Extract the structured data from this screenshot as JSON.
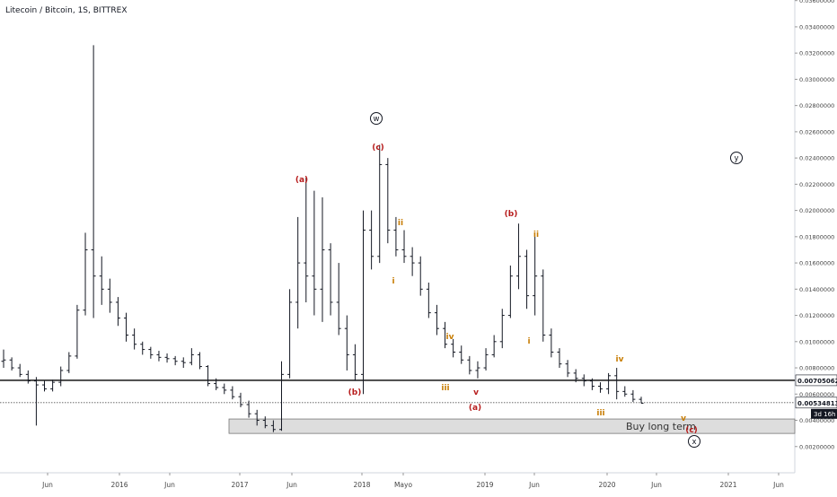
{
  "chart_data": {
    "type": "bar",
    "subtype": "ohlc",
    "title": "Litecoin / Bitcoin, 1S, BITTREX",
    "timeframe": "1S",
    "exchange": "BITTREX",
    "ylim": [
      0.0,
      0.036
    ],
    "y_ticks": [
      "0.00200000",
      "0.00400000",
      "0.00600000",
      "0.00800000",
      "0.01000000",
      "0.01200000",
      "0.01400000",
      "0.01600000",
      "0.01800000",
      "0.02000000",
      "0.02200000",
      "0.02400000",
      "0.02600000",
      "0.02800000",
      "0.03000000",
      "0.03200000",
      "0.03400000",
      "0.03600000"
    ],
    "x_ticks": [
      "Jun",
      "2016",
      "Jun",
      "2017",
      "Jun",
      "2018",
      "Mayo",
      "2019",
      "Jun",
      "2020",
      "Jun",
      "2021",
      "Jun"
    ],
    "grid": false,
    "series": [
      {
        "values": [
          [
            0.0085,
            0.0094,
            0.008,
            0.0086
          ],
          [
            0.0086,
            0.0088,
            0.0078,
            0.008
          ],
          [
            0.008,
            0.0083,
            0.0073,
            0.0075
          ],
          [
            0.0075,
            0.0078,
            0.0068,
            0.007
          ],
          [
            0.007,
            0.0073,
            0.0036,
            0.0067
          ],
          [
            0.0067,
            0.007,
            0.0062,
            0.0064
          ],
          [
            0.0064,
            0.0071,
            0.0062,
            0.0069
          ],
          [
            0.0069,
            0.0081,
            0.0066,
            0.0078
          ],
          [
            0.0078,
            0.0092,
            0.0076,
            0.0089
          ],
          [
            0.0089,
            0.0128,
            0.0087,
            0.0124
          ],
          [
            0.0124,
            0.0183,
            0.012,
            0.017
          ],
          [
            0.017,
            0.0326,
            0.0118,
            0.015
          ],
          [
            0.015,
            0.0165,
            0.0128,
            0.014
          ],
          [
            0.014,
            0.0148,
            0.0122,
            0.013
          ],
          [
            0.013,
            0.0134,
            0.0112,
            0.0118
          ],
          [
            0.0118,
            0.0122,
            0.01,
            0.0105
          ],
          [
            0.0105,
            0.011,
            0.0094,
            0.0098
          ],
          [
            0.0098,
            0.01,
            0.009,
            0.0094
          ],
          [
            0.0094,
            0.0096,
            0.0087,
            0.009
          ],
          [
            0.009,
            0.0093,
            0.0085,
            0.0088
          ],
          [
            0.0088,
            0.0091,
            0.0084,
            0.0087
          ],
          [
            0.0087,
            0.0089,
            0.0082,
            0.0085
          ],
          [
            0.0085,
            0.0088,
            0.008,
            0.0084
          ],
          [
            0.0084,
            0.0095,
            0.0082,
            0.009
          ],
          [
            0.009,
            0.0092,
            0.0079,
            0.0081
          ],
          [
            0.0081,
            0.0082,
            0.0066,
            0.0068
          ],
          [
            0.0068,
            0.0072,
            0.0063,
            0.0065
          ],
          [
            0.0065,
            0.0068,
            0.006,
            0.0063
          ],
          [
            0.0063,
            0.0066,
            0.0056,
            0.0058
          ],
          [
            0.0058,
            0.0061,
            0.005,
            0.0052
          ],
          [
            0.0052,
            0.0055,
            0.0042,
            0.0045
          ],
          [
            0.0045,
            0.0048,
            0.0036,
            0.004
          ],
          [
            0.004,
            0.0043,
            0.0034,
            0.0036
          ],
          [
            0.0036,
            0.004,
            0.0031,
            0.0033
          ],
          [
            0.0033,
            0.0085,
            0.0032,
            0.0075
          ],
          [
            0.0075,
            0.014,
            0.0072,
            0.013
          ],
          [
            0.013,
            0.0195,
            0.011,
            0.016
          ],
          [
            0.016,
            0.0225,
            0.013,
            0.015
          ],
          [
            0.015,
            0.0215,
            0.012,
            0.014
          ],
          [
            0.014,
            0.021,
            0.0115,
            0.017
          ],
          [
            0.017,
            0.0175,
            0.012,
            0.013
          ],
          [
            0.013,
            0.016,
            0.0105,
            0.011
          ],
          [
            0.011,
            0.012,
            0.0078,
            0.009
          ],
          [
            0.009,
            0.0098,
            0.007,
            0.0075
          ],
          [
            0.0075,
            0.02,
            0.006,
            0.0185
          ],
          [
            0.0185,
            0.02,
            0.0155,
            0.0165
          ],
          [
            0.0165,
            0.025,
            0.016,
            0.0235
          ],
          [
            0.0235,
            0.024,
            0.0175,
            0.0185
          ],
          [
            0.0185,
            0.0195,
            0.0165,
            0.017
          ],
          [
            0.017,
            0.0185,
            0.016,
            0.0165
          ],
          [
            0.0165,
            0.0172,
            0.015,
            0.016
          ],
          [
            0.016,
            0.0165,
            0.0135,
            0.014
          ],
          [
            0.014,
            0.0145,
            0.0118,
            0.0122
          ],
          [
            0.0122,
            0.0128,
            0.0105,
            0.011
          ],
          [
            0.011,
            0.0115,
            0.0095,
            0.0098
          ],
          [
            0.0098,
            0.0102,
            0.0088,
            0.0092
          ],
          [
            0.0092,
            0.0097,
            0.0083,
            0.0086
          ],
          [
            0.0086,
            0.0089,
            0.0075,
            0.0078
          ],
          [
            0.0078,
            0.0085,
            0.0072,
            0.008
          ],
          [
            0.008,
            0.0095,
            0.0078,
            0.009
          ],
          [
            0.009,
            0.0105,
            0.0088,
            0.01
          ],
          [
            0.01,
            0.0125,
            0.0095,
            0.012
          ],
          [
            0.012,
            0.0158,
            0.0118,
            0.015
          ],
          [
            0.015,
            0.019,
            0.014,
            0.0165
          ],
          [
            0.0165,
            0.017,
            0.0125,
            0.0135
          ],
          [
            0.0135,
            0.018,
            0.012,
            0.015
          ],
          [
            0.015,
            0.0155,
            0.01,
            0.0105
          ],
          [
            0.0105,
            0.011,
            0.0088,
            0.0092
          ],
          [
            0.0092,
            0.0095,
            0.008,
            0.0083
          ],
          [
            0.0083,
            0.0086,
            0.0073,
            0.0076
          ],
          [
            0.0076,
            0.0079,
            0.0069,
            0.0072
          ],
          [
            0.0072,
            0.0075,
            0.0066,
            0.007
          ],
          [
            0.007,
            0.0072,
            0.0063,
            0.0066
          ],
          [
            0.0066,
            0.0069,
            0.0061,
            0.0064
          ],
          [
            0.0064,
            0.0076,
            0.006,
            0.0074
          ],
          [
            0.0074,
            0.008,
            0.0056,
            0.0062
          ],
          [
            0.0062,
            0.0066,
            0.0058,
            0.006
          ],
          [
            0.006,
            0.0063,
            0.0054,
            0.0056
          ],
          [
            0.0056,
            0.0058,
            0.0053,
            0.0053
          ]
        ]
      }
    ],
    "horizontal_lines": [
      0.00705062,
      0.00534813
    ],
    "price_labels": [
      "0.00705062",
      "0.00534813",
      "3d 16h"
    ],
    "annotations": [
      {
        "text": "(a)",
        "color": "#b71c1c"
      },
      {
        "text": "(b)",
        "color": "#b71c1c"
      },
      {
        "text": "(c)",
        "color": "#b71c1c"
      },
      {
        "text": "w",
        "color": "#131722",
        "circled": true
      },
      {
        "text": "ii",
        "color": "#c77c02"
      },
      {
        "text": "i",
        "color": "#c77c02"
      },
      {
        "text": "iv",
        "color": "#c77c02"
      },
      {
        "text": "iii",
        "color": "#c77c02"
      },
      {
        "text": "v",
        "color": "#b71c1c"
      },
      {
        "text": "(a)",
        "color": "#b71c1c"
      },
      {
        "text": "(b)",
        "color": "#b71c1c"
      },
      {
        "text": "ii",
        "color": "#c77c02"
      },
      {
        "text": "i",
        "color": "#c77c02"
      },
      {
        "text": "iv",
        "color": "#c77c02"
      },
      {
        "text": "iii",
        "color": "#c77c02"
      },
      {
        "text": "v",
        "color": "#c77c02"
      },
      {
        "text": "(c)",
        "color": "#b71c1c"
      },
      {
        "text": "x",
        "color": "#131722",
        "circled": true
      },
      {
        "text": "y",
        "color": "#131722",
        "circled": true
      }
    ],
    "buy_zone": {
      "label": "Buy long term",
      "from": 0.003,
      "to": 0.0041
    },
    "colors": {
      "bars": "#131722",
      "axis_text": "#444444",
      "support_line": "#000000",
      "dotted_line": "#555555",
      "wave_red": "#b71c1c",
      "wave_orange": "#c77c02",
      "zone_fill": "#dddddd",
      "label_bg": "#131722"
    }
  }
}
